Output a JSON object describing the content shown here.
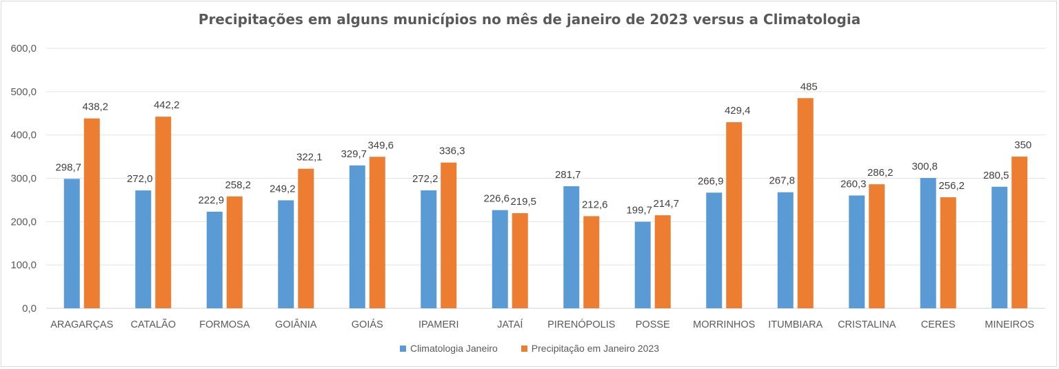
{
  "chart_data": {
    "type": "bar",
    "title": "Precipitações em alguns municípios no mês de janeiro de 2023 versus a Climatologia",
    "xlabel": "",
    "ylabel": "",
    "ylim": [
      0,
      600
    ],
    "yticks": [
      "0,0",
      "100,0",
      "200,0",
      "300,0",
      "400,0",
      "500,0",
      "600,0"
    ],
    "grid": true,
    "legend_position": "bottom",
    "categories": [
      "ARAGARÇAS",
      "CATALÃO",
      "FORMOSA",
      "GOIÂNIA",
      "GOIÁS",
      "IPAMERI",
      "JATAÍ",
      "PIRENÓPOLIS",
      "POSSE",
      "MORRINHOS",
      "ITUMBIARA",
      "CRISTALINA",
      "CERES",
      "MINEIROS"
    ],
    "series": [
      {
        "name": "Climatologia Janeiro",
        "color": "#5b9bd5",
        "values": [
          298.7,
          272.0,
          222.9,
          249.2,
          329.7,
          272.2,
          226.6,
          281.7,
          199.7,
          266.9,
          267.8,
          260.3,
          300.8,
          280.5
        ],
        "labels": [
          "298,7",
          "272,0",
          "222,9",
          "249,2",
          "329,7",
          "272,2",
          "226,6",
          "281,7",
          "199,7",
          "266,9",
          "267,8",
          "260,3",
          "300,8",
          "280,5"
        ]
      },
      {
        "name": "Precipitação em Janeiro 2023",
        "color": "#ed7d31",
        "values": [
          438.2,
          442.2,
          258.2,
          322.1,
          349.6,
          336.3,
          219.5,
          212.6,
          214.7,
          429.4,
          485,
          286.2,
          256.2,
          350
        ],
        "labels": [
          "438,2",
          "442,2",
          "258,2",
          "322,1",
          "349,6",
          "336,3",
          "219,5",
          "212,6",
          "214,7",
          "429,4",
          "485",
          "286,2",
          "256,2",
          "350"
        ]
      }
    ]
  }
}
